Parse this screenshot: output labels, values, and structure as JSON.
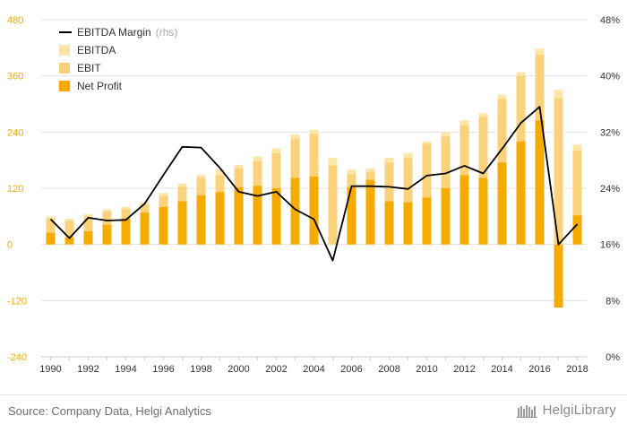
{
  "source": "Source: Company Data, Helgi Analytics",
  "brand": "HelgiLibrary",
  "colors": {
    "ebitda": "#fde4a8",
    "ebit": "#fbd27c",
    "net_profit": "#f5ab00",
    "margin_line": "#000000",
    "left_axis_text": "#f5ab00",
    "right_axis_text": "#333333",
    "grid": "#e3e3e3"
  },
  "chart_data": {
    "type": "bar",
    "x": [
      "1990",
      "1991",
      "1992",
      "1993",
      "1994",
      "1995",
      "1996",
      "1997",
      "1998",
      "1999",
      "2000",
      "2001",
      "2002",
      "2003",
      "2004",
      "2005",
      "2006",
      "2007",
      "2008",
      "2009",
      "2010",
      "2011",
      "2012",
      "2013",
      "2014",
      "2015",
      "2016",
      "2017",
      "2018"
    ],
    "x_tick_labels": [
      "1990",
      "1992",
      "1994",
      "1996",
      "1998",
      "2000",
      "2002",
      "2004",
      "2006",
      "2008",
      "2010",
      "2012",
      "2014",
      "2016",
      "2018"
    ],
    "series": [
      {
        "name": "EBITDA",
        "kind": "bar",
        "axis": "left",
        "values": [
          60,
          55,
          65,
          75,
          80,
          90,
          110,
          130,
          148,
          160,
          170,
          188,
          205,
          235,
          245,
          185,
          160,
          162,
          185,
          195,
          220,
          240,
          265,
          280,
          320,
          368,
          418,
          330,
          213
        ]
      },
      {
        "name": "EBIT",
        "kind": "bar",
        "axis": "left",
        "values": [
          55,
          50,
          60,
          70,
          75,
          85,
          103,
          123,
          142,
          148,
          162,
          178,
          195,
          225,
          235,
          168,
          150,
          155,
          175,
          185,
          215,
          230,
          255,
          272,
          310,
          360,
          405,
          312,
          200
        ]
      },
      {
        "name": "Net Profit",
        "kind": "bar",
        "axis": "left",
        "values": [
          25,
          15,
          28,
          42,
          55,
          68,
          80,
          92,
          105,
          112,
          122,
          125,
          120,
          142,
          145,
          0,
          122,
          138,
          92,
          90,
          100,
          120,
          148,
          142,
          175,
          220,
          265,
          -135,
          62
        ]
      },
      {
        "name": "EBITDA Margin",
        "name_note": "(rhs)",
        "kind": "line",
        "axis": "right",
        "values": [
          19.6,
          16.9,
          19.8,
          19.4,
          19.5,
          21.8,
          25.9,
          29.9,
          29.8,
          26.9,
          23.5,
          22.9,
          23.5,
          21.0,
          19.6,
          13.7,
          24.3,
          24.3,
          24.2,
          23.9,
          25.8,
          26.1,
          27.2,
          26.1,
          29.6,
          33.3,
          35.6,
          16.0,
          18.9
        ]
      }
    ],
    "left_axis": {
      "min": -240,
      "max": 480,
      "ticks": [
        -240,
        -120,
        0,
        120,
        240,
        360,
        480
      ]
    },
    "right_axis": {
      "min": 0,
      "max": 48,
      "unit": "%",
      "ticks": [
        0,
        8,
        16,
        24,
        32,
        40,
        48
      ]
    },
    "legend": {
      "placement": "top-left",
      "items": [
        {
          "label": "EBITDA Margin",
          "note": "(rhs)",
          "kind": "line"
        },
        {
          "label": "EBITDA",
          "kind": "bar"
        },
        {
          "label": "EBIT",
          "kind": "bar"
        },
        {
          "label": "Net Profit",
          "kind": "bar"
        }
      ]
    },
    "grid": true
  }
}
